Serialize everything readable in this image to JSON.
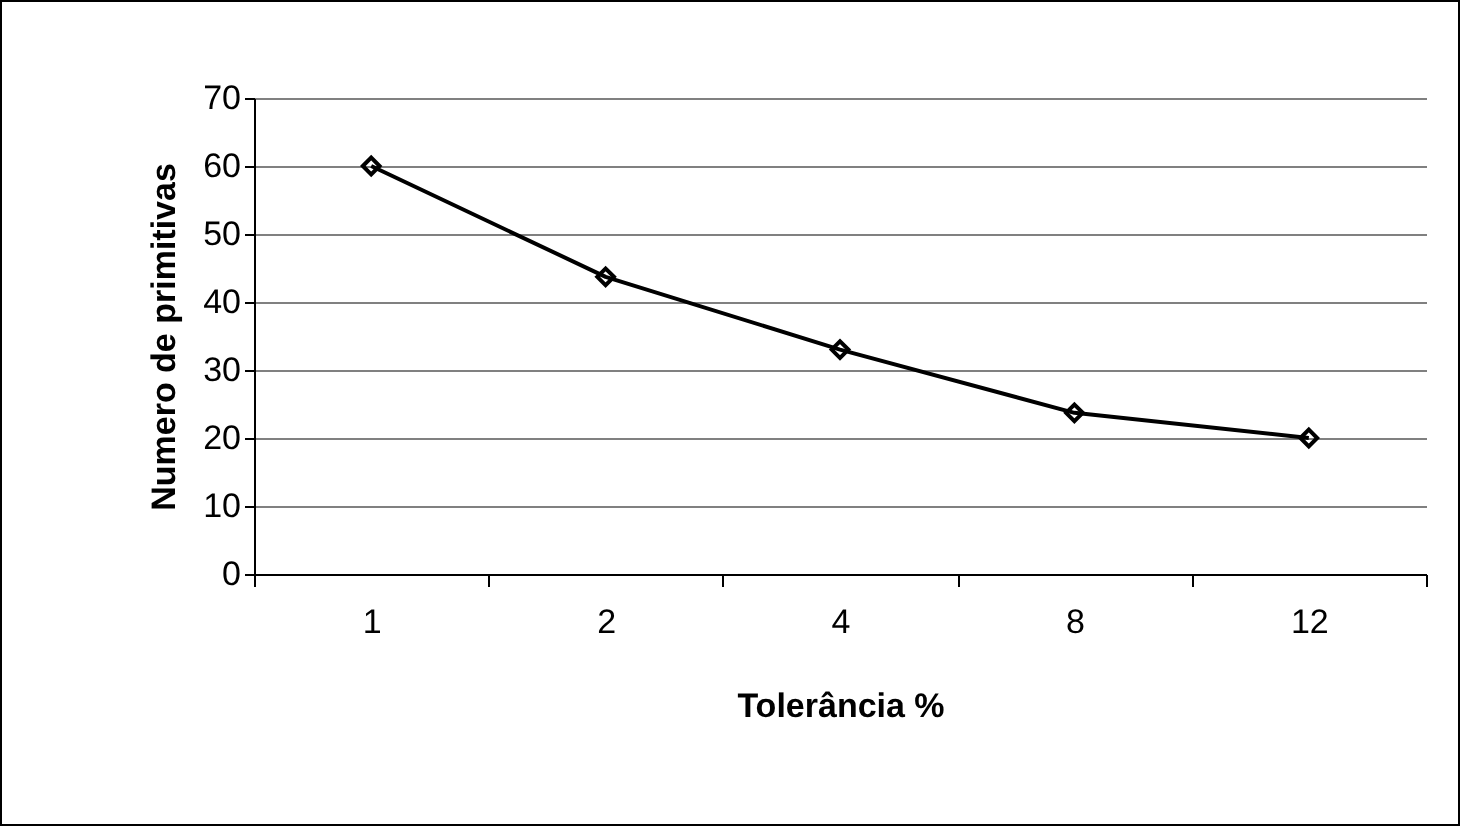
{
  "chart_data": {
    "type": "line",
    "xlabel": "Tolerância %",
    "ylabel": "Numero de primitivas",
    "categories": [
      "1",
      "2",
      "4",
      "8",
      "12"
    ],
    "series": [
      {
        "color": "#000000",
        "values": [
          60,
          43.7,
          33,
          23.7,
          20
        ]
      }
    ],
    "ylim": [
      0,
      70
    ],
    "yticks": [
      0,
      10,
      20,
      30,
      40,
      50,
      60,
      70
    ],
    "grid": "y",
    "legend": false,
    "marker": "diamond",
    "line_style": "solid"
  }
}
